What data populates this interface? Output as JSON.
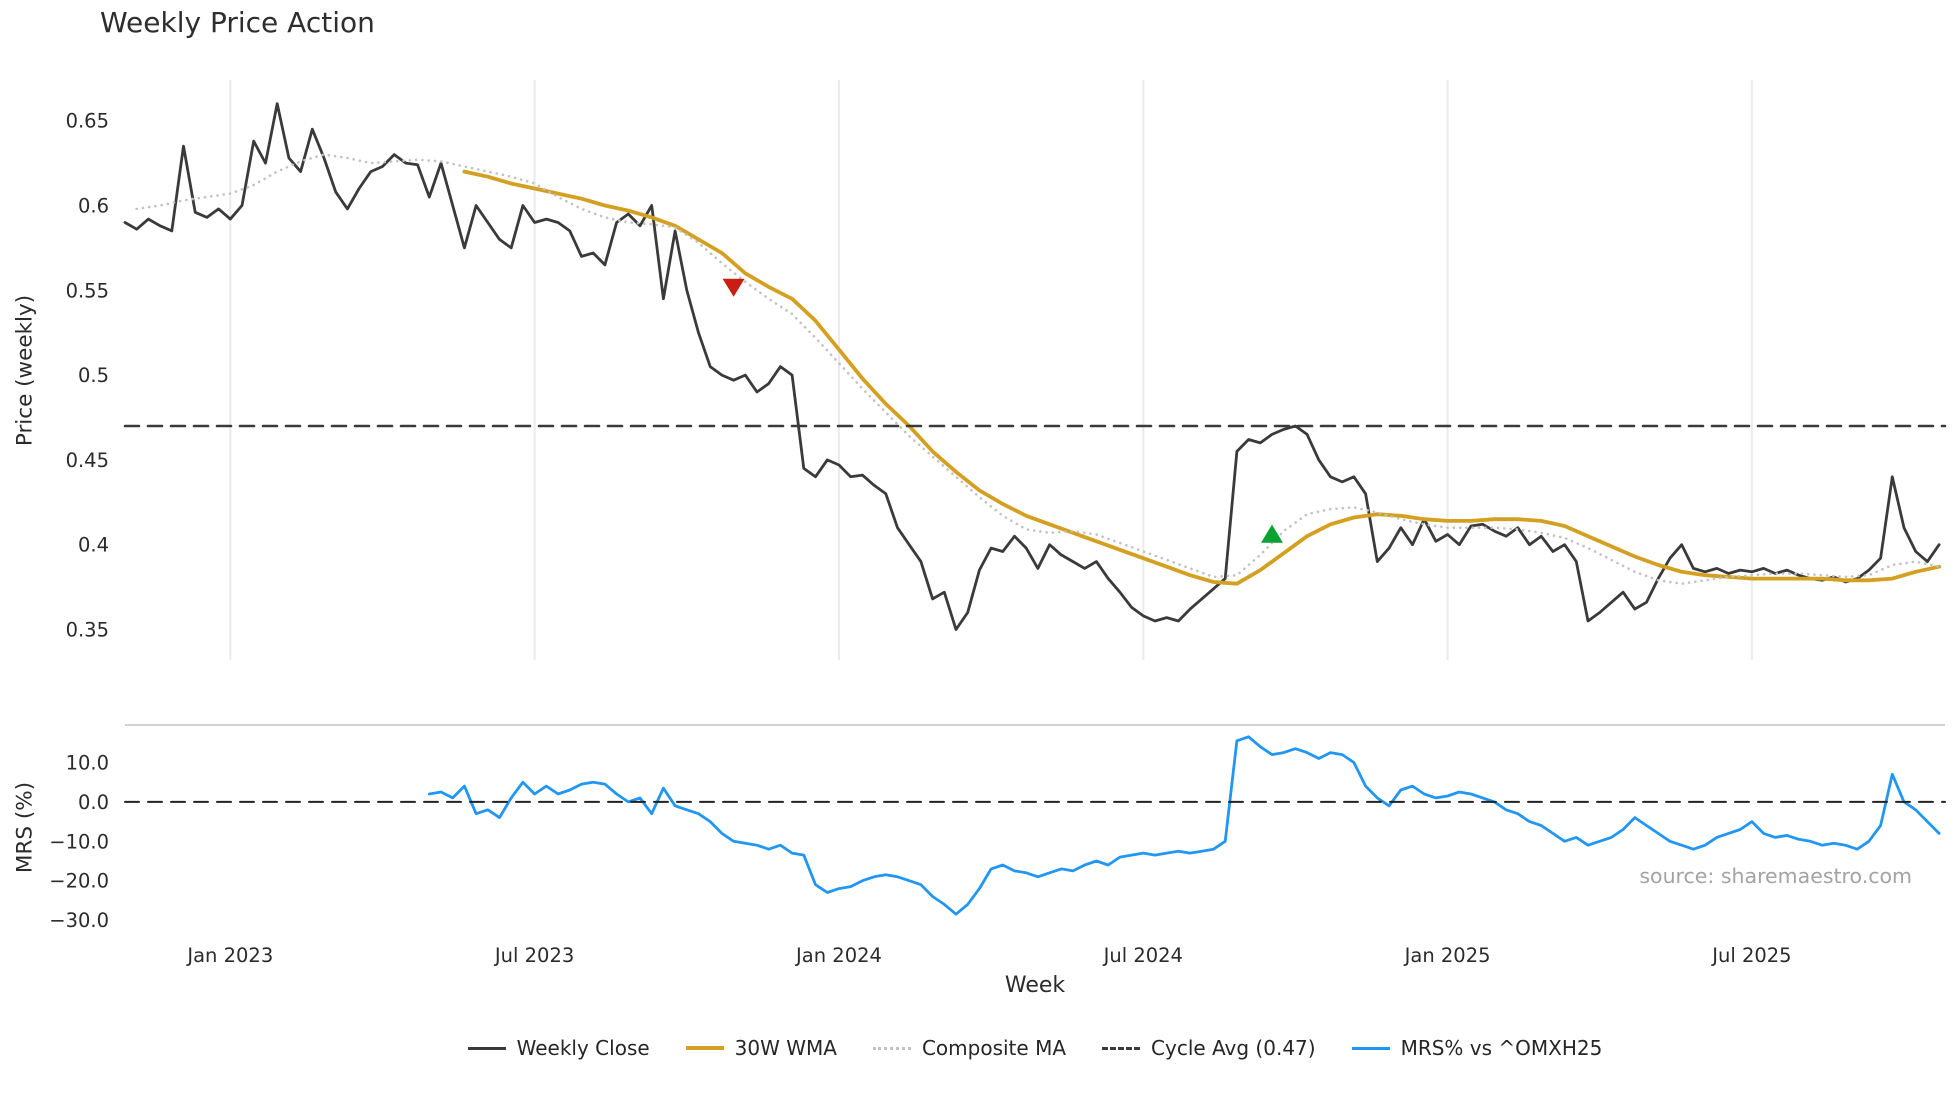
{
  "title": "Weekly Price Action",
  "xlabel": "Week",
  "source": "source: sharemaestro.com",
  "legend": {
    "items": [
      {
        "label": "Weekly Close",
        "color": "#3a3a3a",
        "style": "solid",
        "weight": 3.5
      },
      {
        "label": "30W WMA",
        "color": "#d4a021",
        "style": "solid",
        "weight": 4
      },
      {
        "label": "Composite MA",
        "color": "#c2c2c2",
        "style": "dotted",
        "weight": 3.5
      },
      {
        "label": "Cycle Avg (0.47)",
        "color": "#3a3a3a",
        "style": "dashed",
        "weight": 3
      },
      {
        "label": "MRS% vs ^OMXH25",
        "color": "#2196f3",
        "style": "solid",
        "weight": 3.5
      }
    ]
  },
  "chart_data": [
    {
      "type": "line",
      "panel": "price",
      "title": "Weekly Price Action",
      "ylabel": "Price (weekly)",
      "ylim": [
        0.332,
        0.674
      ],
      "xlim": [
        0,
        155.5
      ],
      "yticks": [
        0.65,
        0.6,
        0.55,
        0.5,
        0.45,
        0.4,
        0.35
      ],
      "ytick_labels": [
        "0.65",
        "0.6",
        "0.55",
        "0.5",
        "0.45",
        "0.4",
        "0.35"
      ],
      "xticks": [
        9,
        35,
        61,
        87,
        113,
        139
      ],
      "grid": true,
      "series": [
        {
          "name": "Weekly Close",
          "data_name": "weekly-close-line",
          "color": "#3a3a3a",
          "width": 2.8,
          "style": "solid",
          "x0": 0,
          "dx": 1,
          "values": [
            0.59,
            0.586,
            0.592,
            0.588,
            0.585,
            0.635,
            0.596,
            0.593,
            0.598,
            0.592,
            0.6,
            0.638,
            0.625,
            0.66,
            0.628,
            0.62,
            0.645,
            0.628,
            0.608,
            0.598,
            0.61,
            0.62,
            0.623,
            0.63,
            0.625,
            0.624,
            0.605,
            0.625,
            0.6,
            0.575,
            0.6,
            0.59,
            0.58,
            0.575,
            0.6,
            0.59,
            0.592,
            0.59,
            0.585,
            0.57,
            0.572,
            0.565,
            0.59,
            0.595,
            0.588,
            0.6,
            0.545,
            0.585,
            0.55,
            0.525,
            0.505,
            0.5,
            0.497,
            0.5,
            0.49,
            0.495,
            0.505,
            0.5,
            0.445,
            0.44,
            0.45,
            0.447,
            0.44,
            0.441,
            0.435,
            0.43,
            0.41,
            0.4,
            0.39,
            0.368,
            0.372,
            0.35,
            0.36,
            0.385,
            0.398,
            0.396,
            0.405,
            0.398,
            0.386,
            0.4,
            0.394,
            0.39,
            0.386,
            0.39,
            0.38,
            0.372,
            0.363,
            0.358,
            0.355,
            0.357,
            0.355,
            0.362,
            0.368,
            0.374,
            0.38,
            0.455,
            0.462,
            0.46,
            0.465,
            0.468,
            0.47,
            0.465,
            0.45,
            0.44,
            0.437,
            0.44,
            0.43,
            0.39,
            0.398,
            0.41,
            0.4,
            0.415,
            0.402,
            0.406,
            0.4,
            0.411,
            0.412,
            0.408,
            0.405,
            0.41,
            0.4,
            0.405,
            0.396,
            0.4,
            0.39,
            0.355,
            0.36,
            0.366,
            0.372,
            0.362,
            0.366,
            0.38,
            0.392,
            0.4,
            0.386,
            0.384,
            0.386,
            0.383,
            0.385,
            0.384,
            0.386,
            0.383,
            0.385,
            0.382,
            0.38,
            0.379,
            0.381,
            0.378,
            0.38,
            0.385,
            0.392,
            0.44,
            0.41,
            0.396,
            0.39,
            0.4
          ]
        },
        {
          "name": "30W WMA",
          "data_name": "wma-line",
          "color": "#d4a021",
          "width": 3.8,
          "style": "solid",
          "x0": 29,
          "dx": 2,
          "values": [
            0.62,
            0.617,
            0.613,
            0.61,
            0.607,
            0.604,
            0.6,
            0.597,
            0.593,
            0.588,
            0.58,
            0.572,
            0.56,
            0.552,
            0.545,
            0.532,
            0.515,
            0.498,
            0.483,
            0.47,
            0.455,
            0.443,
            0.432,
            0.424,
            0.417,
            0.412,
            0.407,
            0.402,
            0.397,
            0.392,
            0.387,
            0.382,
            0.378,
            0.377,
            0.385,
            0.395,
            0.405,
            0.412,
            0.416,
            0.418,
            0.417,
            0.415,
            0.414,
            0.414,
            0.415,
            0.415,
            0.414,
            0.411,
            0.405,
            0.399,
            0.393,
            0.388,
            0.384,
            0.382,
            0.381,
            0.38,
            0.38,
            0.38,
            0.38,
            0.379,
            0.379,
            0.38,
            0.384,
            0.387
          ]
        },
        {
          "name": "Composite MA",
          "data_name": "composite-ma-line",
          "color": "#c2c2c2",
          "width": 2.6,
          "style": "dotted",
          "x0": 1,
          "dx": 2,
          "values": [
            0.598,
            0.6,
            0.603,
            0.605,
            0.607,
            0.612,
            0.62,
            0.626,
            0.63,
            0.628,
            0.625,
            0.626,
            0.627,
            0.626,
            0.623,
            0.62,
            0.617,
            0.613,
            0.605,
            0.598,
            0.593,
            0.59,
            0.589,
            0.587,
            0.578,
            0.566,
            0.555,
            0.545,
            0.536,
            0.522,
            0.507,
            0.492,
            0.478,
            0.464,
            0.452,
            0.44,
            0.428,
            0.417,
            0.409,
            0.407,
            0.408,
            0.406,
            0.401,
            0.396,
            0.391,
            0.386,
            0.381,
            0.382,
            0.394,
            0.408,
            0.418,
            0.421,
            0.422,
            0.419,
            0.415,
            0.412,
            0.41,
            0.41,
            0.41,
            0.409,
            0.407,
            0.404,
            0.398,
            0.391,
            0.384,
            0.379,
            0.377,
            0.379,
            0.381,
            0.382,
            0.383,
            0.383,
            0.382,
            0.381,
            0.382,
            0.388,
            0.39,
            0.387
          ]
        },
        {
          "name": "Cycle Avg (0.47)",
          "data_name": "cycle-avg-line",
          "color": "#3a3a3a",
          "width": 2.6,
          "style": "dashed",
          "const": 0.47
        }
      ],
      "markers": [
        {
          "data_name": "sell-signal-marker",
          "shape": "triangle-down",
          "color": "#c81e14",
          "week": 52,
          "value": 0.552
        },
        {
          "data_name": "buy-signal-marker",
          "shape": "triangle-up",
          "color": "#0aa230",
          "week": 98,
          "value": 0.406
        }
      ]
    },
    {
      "type": "line",
      "panel": "mrs",
      "ylabel": "MRS (%)",
      "xlabel": "Week",
      "ylim": [
        -32.5,
        19.5
      ],
      "xlim": [
        0,
        155.5
      ],
      "yticks": [
        10,
        0,
        -10,
        -20,
        -30
      ],
      "ytick_labels": [
        "10.0",
        "0.0",
        "−10.0",
        "−20.0",
        "−30.0"
      ],
      "xticks": [
        9,
        35,
        61,
        87,
        113,
        139
      ],
      "xtick_labels": [
        "Jan 2023",
        "Jul 2023",
        "Jan 2024",
        "Jul 2024",
        "Jan 2025",
        "Jul 2025"
      ],
      "top_spine": true,
      "series": [
        {
          "name": "MRS% vs ^OMXH25",
          "data_name": "mrs-line",
          "color": "#2196f3",
          "width": 2.8,
          "style": "solid",
          "x0": 26,
          "dx": 1,
          "values": [
            2,
            2.5,
            1,
            4,
            -3,
            -2,
            -4,
            1,
            5,
            2,
            4,
            2,
            3,
            4.5,
            5,
            4.5,
            2,
            0,
            1,
            -3,
            3.5,
            -1,
            -2,
            -3,
            -5,
            -8,
            -10,
            -10.5,
            -11,
            -12,
            -11,
            -13,
            -13.5,
            -21,
            -23,
            -22,
            -21.5,
            -20,
            -19,
            -18.5,
            -19,
            -20,
            -21,
            -24,
            -26,
            -28.5,
            -26,
            -22,
            -17,
            -16,
            -17.5,
            -18,
            -19,
            -18,
            -17,
            -17.5,
            -16,
            -15,
            -16,
            -14,
            -13.5,
            -13,
            -13.5,
            -13,
            -12.5,
            -13,
            -12.5,
            -12,
            -10,
            15.5,
            16.5,
            14,
            12,
            12.5,
            13.5,
            12.5,
            11,
            12.5,
            12,
            10,
            4,
            1,
            -1,
            3,
            4,
            2,
            1,
            1.5,
            2.5,
            2,
            1,
            0,
            -2,
            -3,
            -5,
            -6,
            -8,
            -10,
            -9,
            -11,
            -10,
            -9,
            -7,
            -4,
            -6,
            -8,
            -10,
            -11,
            -12,
            -11,
            -9,
            -8,
            -7,
            -5,
            -8,
            -9,
            -8.5,
            -9.5,
            -10,
            -11,
            -10.5,
            -11,
            -12,
            -10,
            -6,
            7,
            0,
            -2,
            -5,
            -8
          ]
        },
        {
          "name": "Zero line",
          "data_name": "zero-line",
          "color": "#222222",
          "width": 2,
          "style": "dashed",
          "const": 0
        }
      ]
    }
  ]
}
